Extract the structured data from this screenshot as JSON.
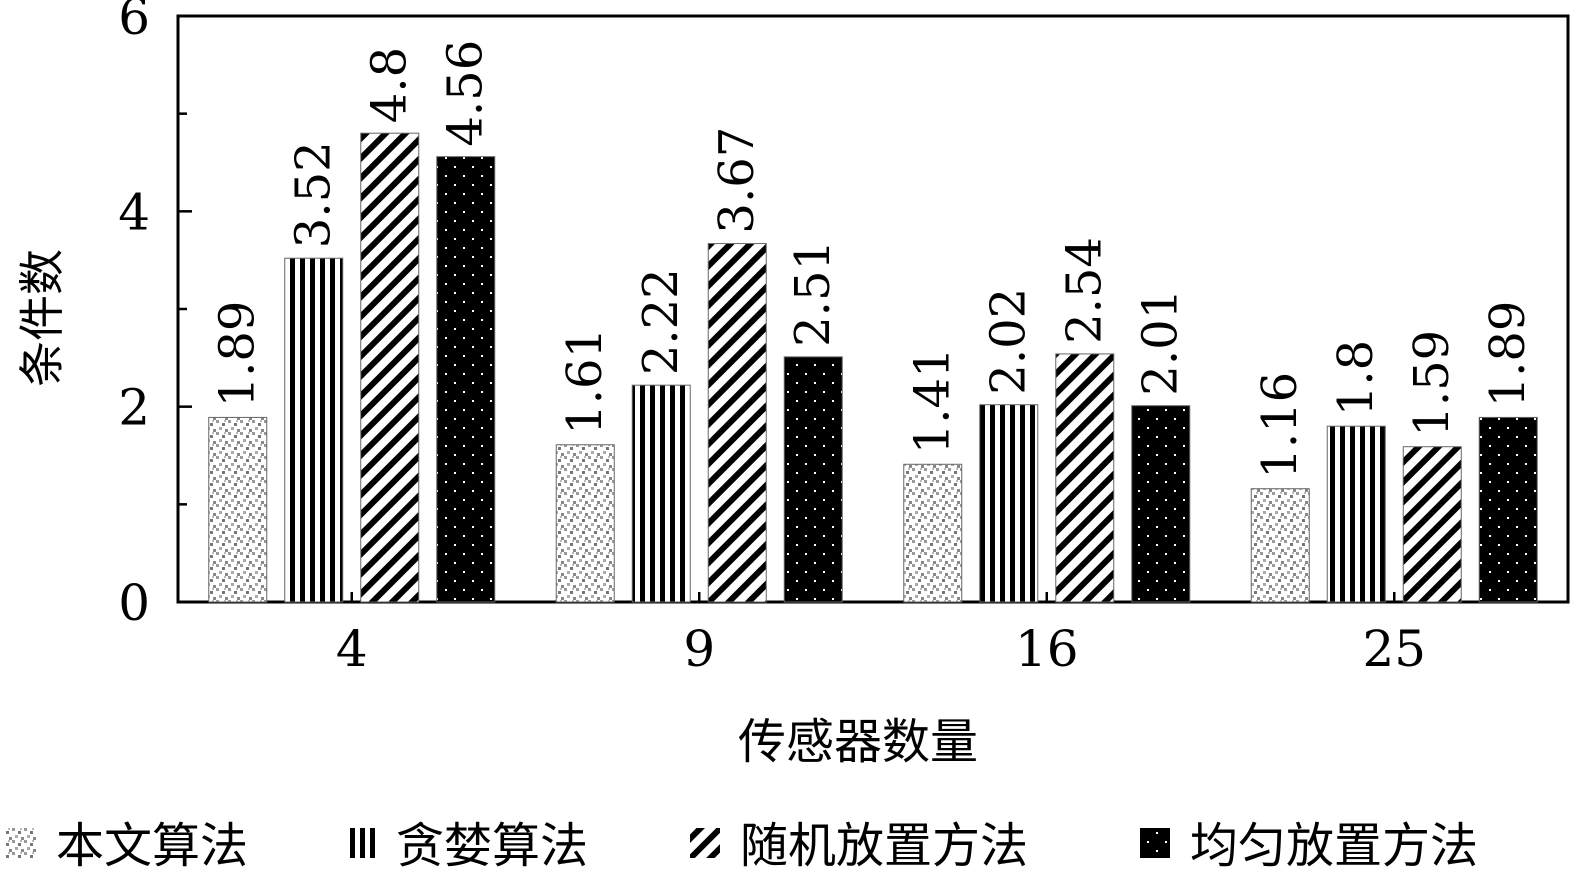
{
  "chart_data": {
    "type": "bar",
    "title": "",
    "xlabel": "传感器数量",
    "ylabel": "条件数",
    "categories": [
      "4",
      "9",
      "16",
      "25"
    ],
    "ylim": [
      0,
      6
    ],
    "yticks": [
      "0",
      "2",
      "4",
      "6"
    ],
    "grid": false,
    "legend_position": "bottom",
    "series": [
      {
        "name": "本文算法",
        "values": [
          1.89,
          1.61,
          1.41,
          1.16
        ],
        "value_labels": [
          "1.89",
          "1.61",
          "1.41",
          "1.16"
        ],
        "pattern": "dots-light"
      },
      {
        "name": "贪婪算法",
        "values": [
          3.52,
          2.22,
          2.02,
          1.8
        ],
        "value_labels": [
          "3.52",
          "2.22",
          "2.02",
          "1.8"
        ],
        "pattern": "vertical-stripes"
      },
      {
        "name": "随机放置方法",
        "values": [
          4.8,
          3.67,
          2.54,
          1.59
        ],
        "value_labels": [
          "4.8",
          "3.67",
          "2.54",
          "1.59"
        ],
        "pattern": "diagonal-stripes"
      },
      {
        "name": "均匀放置方法",
        "values": [
          4.56,
          2.51,
          2.01,
          1.89
        ],
        "value_labels": [
          "4.56",
          "2.51",
          "2.01",
          "1.89"
        ],
        "pattern": "black-dots"
      }
    ]
  }
}
